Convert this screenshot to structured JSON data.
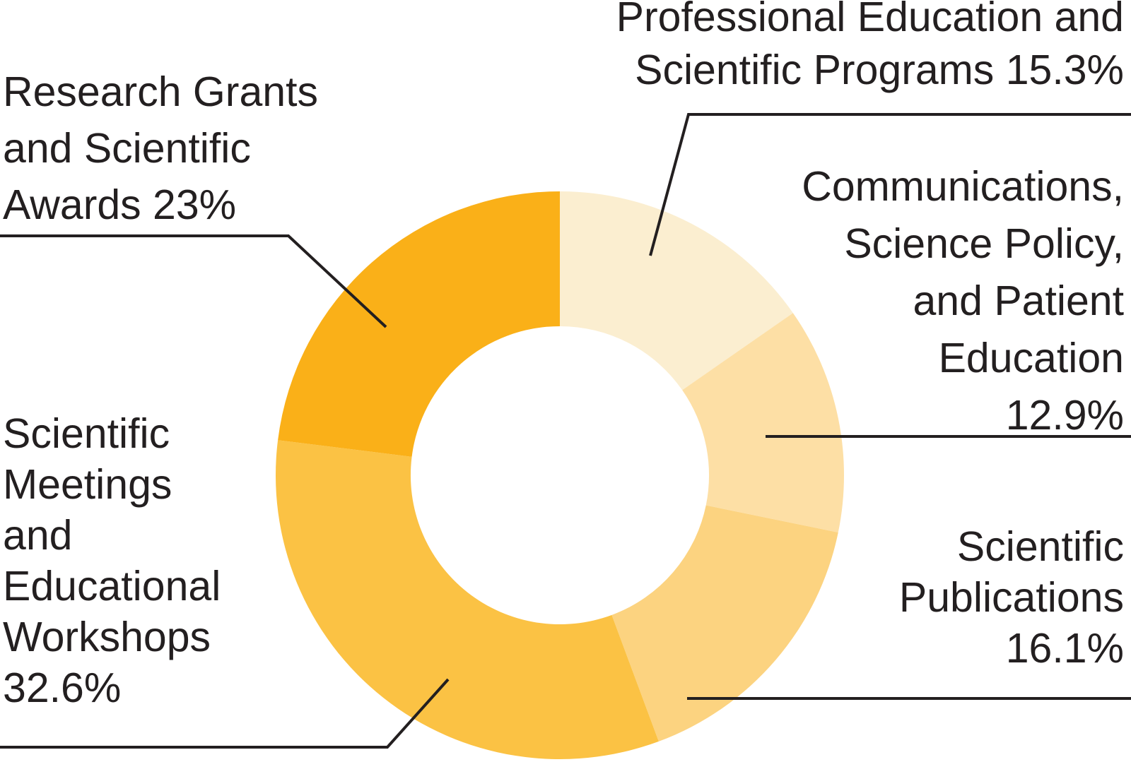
{
  "chart_data": {
    "type": "donut",
    "unit": "%",
    "direction": "clockwise",
    "start_angle": "12 o'clock",
    "inner_radius_ratio": 0.525,
    "segments": [
      {
        "name": "professional-education-and-scientific-programs",
        "label": "Professional Education and Scientific Programs",
        "value": 15.3,
        "color": "#FBEED0"
      },
      {
        "name": "communications-science-policy-and-patient-education",
        "label": "Communications, Science Policy, and Patient Education",
        "value": 12.9,
        "color": "#FDDFA5"
      },
      {
        "name": "scientific-publications",
        "label": "Scientific Publications",
        "value": 16.1,
        "color": "#FCD380"
      },
      {
        "name": "scientific-meetings-and-educational-workshops",
        "label": "Scientific Meetings and Educational Workshops",
        "value": 32.6,
        "color": "#FBC244"
      },
      {
        "name": "research-grants-and-scientific-awards",
        "label": "Research Grants and Scientific Awards",
        "value": 23.0,
        "color": "#FAB018"
      }
    ]
  },
  "labels": {
    "professional_education": {
      "text": "Professional Education and\nScientific Programs 15.3%"
    },
    "communications": {
      "text": "Communications,\nScience Policy,\nand Patient\nEducation\n12.9%"
    },
    "scientific_publications": {
      "text": "Scientific\nPublications\n16.1%"
    },
    "scientific_meetings": {
      "text": "Scientific\nMeetings\nand\nEducational\nWorkshops\n32.6%"
    },
    "research_grants": {
      "text": "Research Grants\nand Scientific\nAwards 23%"
    }
  },
  "colors": {
    "text": "#231F20",
    "leader_line": "#231F20",
    "background": "#FFFFFF"
  }
}
